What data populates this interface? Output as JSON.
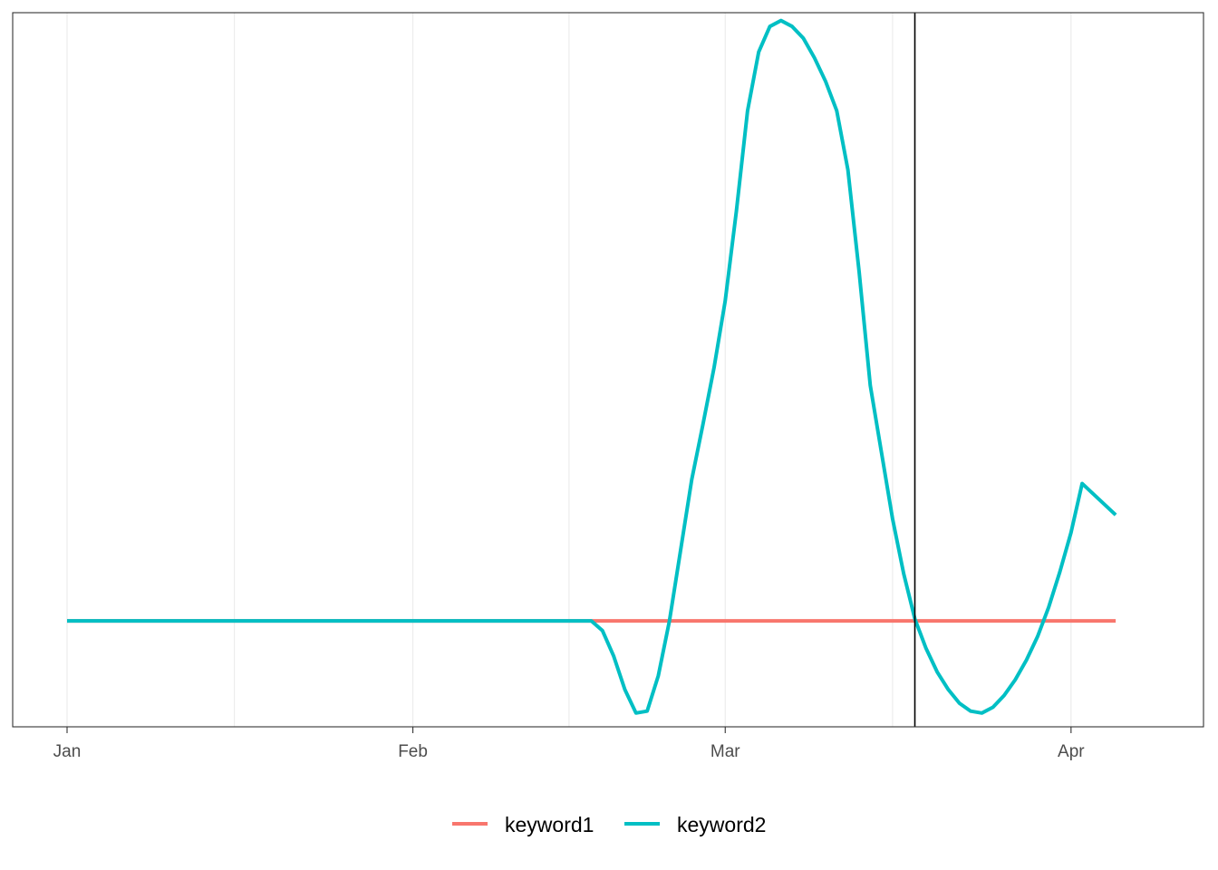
{
  "chart_data": {
    "type": "line",
    "x_axis": {
      "type": "date",
      "range": [
        "2021-01-01",
        "2021-04-08"
      ],
      "ticks": [
        {
          "date": "2021-01-01",
          "label": "Jan"
        },
        {
          "date": "2021-02-01",
          "label": "Feb"
        },
        {
          "date": "2021-03-01",
          "label": "Mar"
        },
        {
          "date": "2021-04-01",
          "label": "Apr"
        }
      ],
      "minor_gridlines": [
        "2021-01-16",
        "2021-02-15",
        "2021-03-16"
      ]
    },
    "y_axis": {
      "labels_shown": false,
      "range": [
        -0.54,
        3.1
      ]
    },
    "grid": "vertical-only",
    "legend": {
      "position": "bottom"
    },
    "vertical_reference_line": {
      "date": "2021-03-18",
      "color": "#000000"
    },
    "series": [
      {
        "name": "keyword1",
        "color": "#F8766D",
        "points": [
          {
            "x": "2021-01-01",
            "y": 0
          },
          {
            "x": "2021-04-05",
            "y": 0
          }
        ]
      },
      {
        "name": "keyword2",
        "color": "#00BFC4",
        "points": [
          {
            "x": "2021-01-01",
            "y": 0
          },
          {
            "x": "2021-02-17",
            "y": 0
          },
          {
            "x": "2021-02-18",
            "y": -0.05
          },
          {
            "x": "2021-02-19",
            "y": -0.18
          },
          {
            "x": "2021-02-20",
            "y": -0.35
          },
          {
            "x": "2021-02-21",
            "y": -0.47
          },
          {
            "x": "2021-02-22",
            "y": -0.46
          },
          {
            "x": "2021-02-23",
            "y": -0.28
          },
          {
            "x": "2021-02-24",
            "y": 0.0
          },
          {
            "x": "2021-02-25",
            "y": 0.36
          },
          {
            "x": "2021-02-26",
            "y": 0.72
          },
          {
            "x": "2021-02-27",
            "y": 1.0
          },
          {
            "x": "2021-02-28",
            "y": 1.29
          },
          {
            "x": "2021-03-01",
            "y": 1.63
          },
          {
            "x": "2021-03-02",
            "y": 2.09
          },
          {
            "x": "2021-03-03",
            "y": 2.6
          },
          {
            "x": "2021-03-04",
            "y": 2.9
          },
          {
            "x": "2021-03-05",
            "y": 3.03
          },
          {
            "x": "2021-03-06",
            "y": 3.06
          },
          {
            "x": "2021-03-07",
            "y": 3.03
          },
          {
            "x": "2021-03-08",
            "y": 2.97
          },
          {
            "x": "2021-03-09",
            "y": 2.87
          },
          {
            "x": "2021-03-10",
            "y": 2.75
          },
          {
            "x": "2021-03-11",
            "y": 2.6
          },
          {
            "x": "2021-03-12",
            "y": 2.3
          },
          {
            "x": "2021-03-13",
            "y": 1.78
          },
          {
            "x": "2021-03-14",
            "y": 1.2
          },
          {
            "x": "2021-03-15",
            "y": 0.86
          },
          {
            "x": "2021-03-16",
            "y": 0.52
          },
          {
            "x": "2021-03-17",
            "y": 0.24
          },
          {
            "x": "2021-03-18",
            "y": 0.01
          },
          {
            "x": "2021-03-19",
            "y": -0.14
          },
          {
            "x": "2021-03-20",
            "y": -0.26
          },
          {
            "x": "2021-03-21",
            "y": -0.35
          },
          {
            "x": "2021-03-22",
            "y": -0.42
          },
          {
            "x": "2021-03-23",
            "y": -0.46
          },
          {
            "x": "2021-03-24",
            "y": -0.47
          },
          {
            "x": "2021-03-25",
            "y": -0.44
          },
          {
            "x": "2021-03-26",
            "y": -0.38
          },
          {
            "x": "2021-03-27",
            "y": -0.3
          },
          {
            "x": "2021-03-28",
            "y": -0.2
          },
          {
            "x": "2021-03-29",
            "y": -0.08
          },
          {
            "x": "2021-03-30",
            "y": 0.07
          },
          {
            "x": "2021-03-31",
            "y": 0.25
          },
          {
            "x": "2021-04-01",
            "y": 0.45
          },
          {
            "x": "2021-04-02",
            "y": 0.7
          },
          {
            "x": "2021-04-05",
            "y": 0.54
          }
        ]
      }
    ]
  }
}
